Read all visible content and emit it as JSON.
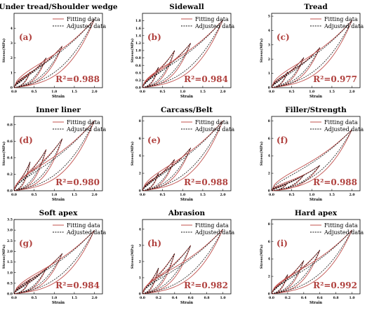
{
  "figure": {
    "legend_labels": [
      "Fitting data",
      "Adjusted data"
    ],
    "colors": {
      "fitting": "#c0504d",
      "adjusted": "#111111",
      "r2_text": "#b0413e"
    },
    "xlabel": "Strain",
    "ylabel": "Stress(MPa)"
  },
  "chart_data": [
    {
      "type": "line",
      "panel_label": "(a)",
      "title": "Under tread/Shoulder wedge",
      "r2_text": "R²=0.988",
      "xlabel": "Strain",
      "ylabel": "Stress(MPa)",
      "xlim": [
        0,
        2.2
      ],
      "ylim": [
        0,
        5
      ],
      "xticks": [
        "0.0",
        "0.5",
        "1.0",
        "1.5",
        "2.0"
      ],
      "xtick_values": [
        0,
        0.5,
        1,
        1.5,
        2
      ],
      "yticks": [
        "0",
        "1",
        "2",
        "3",
        "4"
      ],
      "ytick_values": [
        0,
        1,
        2,
        3,
        4
      ],
      "legend": "top-left",
      "grid": false,
      "cycles": [
        {
          "xmax": 0.4,
          "ymax": 1.05
        },
        {
          "xmax": 0.8,
          "ymax": 2.0
        },
        {
          "xmax": 1.2,
          "ymax": 2.8
        },
        {
          "xmax": 2.0,
          "ymax": 4.6
        }
      ]
    },
    {
      "type": "line",
      "panel_label": "(b)",
      "title": "Sidewall",
      "r2_text": "R²=0.984",
      "xlabel": "Strain",
      "ylabel": "Stress(MPa)",
      "xlim": [
        0,
        2.2
      ],
      "ylim": [
        0,
        2.0
      ],
      "xticks": [
        "0.0",
        "0.5",
        "1.0",
        "1.5",
        "2.0"
      ],
      "xtick_values": [
        0,
        0.5,
        1,
        1.5,
        2
      ],
      "yticks": [
        "0.0",
        "0.2",
        "0.4",
        "0.6",
        "0.8",
        "1.0",
        "1.2",
        "1.4",
        "1.6",
        "1.8"
      ],
      "ytick_values": [
        0,
        0.2,
        0.4,
        0.6,
        0.8,
        1.0,
        1.2,
        1.4,
        1.6,
        1.8
      ],
      "legend": "top-left",
      "grid": false,
      "cycles": [
        {
          "xmax": 0.4,
          "ymax": 0.55
        },
        {
          "xmax": 0.8,
          "ymax": 1.0
        },
        {
          "xmax": 1.2,
          "ymax": 1.2
        },
        {
          "xmax": 2.0,
          "ymax": 1.82
        }
      ]
    },
    {
      "type": "line",
      "panel_label": "(c)",
      "title": "Tread",
      "r2_text": "R²=0.977",
      "xlabel": "Strain",
      "ylabel": "Stress(MPa)",
      "xlim": [
        0,
        2.2
      ],
      "ylim": [
        0,
        5.2
      ],
      "xticks": [
        "0.0",
        "0.5",
        "1.0",
        "1.5",
        "2.0"
      ],
      "xtick_values": [
        0,
        0.5,
        1,
        1.5,
        2
      ],
      "yticks": [
        "0",
        "1",
        "2",
        "3",
        "4",
        "5"
      ],
      "ytick_values": [
        0,
        1,
        2,
        3,
        4,
        5
      ],
      "legend": "top-left",
      "grid": false,
      "cycles": [
        {
          "xmax": 0.4,
          "ymax": 1.1
        },
        {
          "xmax": 0.8,
          "ymax": 2.1
        },
        {
          "xmax": 1.2,
          "ymax": 2.8
        },
        {
          "xmax": 2.0,
          "ymax": 4.7
        }
      ]
    },
    {
      "type": "line",
      "panel_label": "(d)",
      "title": "Inner liner",
      "r2_text": "R²=0.980",
      "xlabel": "Strain",
      "ylabel": "Stress(MPa)",
      "xlim": [
        0,
        2.2
      ],
      "ylim": [
        0,
        0.9
      ],
      "xticks": [
        "0.0",
        "0.5",
        "1.0",
        "1.5",
        "2.0"
      ],
      "xtick_values": [
        0,
        0.5,
        1,
        1.5,
        2
      ],
      "yticks": [
        "0.0",
        "0.2",
        "0.4",
        "0.6",
        "0.8"
      ],
      "ytick_values": [
        0,
        0.2,
        0.4,
        0.6,
        0.8
      ],
      "legend": "top-left",
      "grid": false,
      "cycles": [
        {
          "xmax": 0.4,
          "ymax": 0.35
        },
        {
          "xmax": 0.8,
          "ymax": 0.5
        },
        {
          "xmax": 1.2,
          "ymax": 0.63
        },
        {
          "xmax": 2.0,
          "ymax": 0.85
        }
      ]
    },
    {
      "type": "line",
      "panel_label": "(e)",
      "title": "Carcass/Belt",
      "r2_text": "R²=0.988",
      "xlabel": "Strain",
      "ylabel": "Stress(MPa)",
      "xlim": [
        0,
        2.2
      ],
      "ylim": [
        0,
        8.5
      ],
      "xticks": [
        "0.0",
        "0.5",
        "1.0",
        "1.5",
        "2.0"
      ],
      "xtick_values": [
        0,
        0.5,
        1,
        1.5,
        2
      ],
      "yticks": [
        "0",
        "2",
        "4",
        "6",
        "8"
      ],
      "ytick_values": [
        0,
        2,
        4,
        6,
        8
      ],
      "legend": "top-left",
      "grid": false,
      "cycles": [
        {
          "xmax": 0.4,
          "ymax": 2.0
        },
        {
          "xmax": 0.8,
          "ymax": 3.6
        },
        {
          "xmax": 1.2,
          "ymax": 4.9
        },
        {
          "xmax": 2.0,
          "ymax": 8.0
        }
      ]
    },
    {
      "type": "line",
      "panel_label": "(f)",
      "title": "Filler/Strength",
      "r2_text": "R²=0.988",
      "xlabel": "Strain",
      "ylabel": "Stress(MPa)",
      "xlim": [
        0,
        2.2
      ],
      "ylim": [
        0,
        8.5
      ],
      "xticks": [
        "0.0",
        "0.5",
        "1.0",
        "1.5",
        "2.0"
      ],
      "xtick_values": [
        0,
        0.5,
        1,
        1.5,
        2
      ],
      "yticks": [
        "0",
        "2",
        "4",
        "6",
        "8"
      ],
      "ytick_values": [
        0,
        2,
        4,
        6,
        8
      ],
      "legend": "top-left",
      "grid": false,
      "cycles": [
        {
          "xmax": 0.4,
          "ymax": 0.9
        },
        {
          "xmax": 0.8,
          "ymax": 1.8
        },
        {
          "xmax": 1.2,
          "ymax": 2.9
        },
        {
          "xmax": 2.0,
          "ymax": 7.0
        }
      ]
    },
    {
      "type": "line",
      "panel_label": "(g)",
      "title": "Soft apex",
      "r2_text": "R²=0.984",
      "xlabel": "Strain",
      "ylabel": "Stress(MPa)",
      "xlim": [
        0,
        2.2
      ],
      "ylim": [
        0,
        3.5
      ],
      "xticks": [
        "0.0",
        "0.5",
        "1.0",
        "1.5",
        "2.0"
      ],
      "xtick_values": [
        0,
        0.5,
        1,
        1.5,
        2
      ],
      "yticks": [
        "0.0",
        "0.5",
        "1.0",
        "1.5",
        "2.0",
        "2.5",
        "3.0",
        "3.5"
      ],
      "ytick_values": [
        0,
        0.5,
        1,
        1.5,
        2,
        2.5,
        3,
        3.5
      ],
      "legend": "top-left",
      "grid": false,
      "cycles": [
        {
          "xmax": 0.4,
          "ymax": 0.7
        },
        {
          "xmax": 0.8,
          "ymax": 1.2
        },
        {
          "xmax": 1.2,
          "ymax": 1.9
        },
        {
          "xmax": 2.0,
          "ymax": 3.0
        }
      ]
    },
    {
      "type": "line",
      "panel_label": "(h)",
      "title": "Abrasion",
      "r2_text": "R²=0.982",
      "xlabel": "Strain",
      "ylabel": "Stress(MPa)",
      "xlim": [
        0,
        1.1
      ],
      "ylim": [
        0,
        4.6
      ],
      "xticks": [
        "0.0",
        "0.2",
        "0.4",
        "0.6",
        "0.8",
        "1.0"
      ],
      "xtick_values": [
        0,
        0.2,
        0.4,
        0.6,
        0.8,
        1.0
      ],
      "yticks": [
        "0",
        "1",
        "2",
        "3",
        "4"
      ],
      "ytick_values": [
        0,
        1,
        2,
        3,
        4
      ],
      "legend": "top-left",
      "grid": false,
      "cycles": [
        {
          "xmax": 0.2,
          "ymax": 1.6
        },
        {
          "xmax": 0.4,
          "ymax": 2.5
        },
        {
          "xmax": 0.6,
          "ymax": 3.0
        },
        {
          "xmax": 1.0,
          "ymax": 4.0
        }
      ]
    },
    {
      "type": "line",
      "panel_label": "(i)",
      "title": "Hard apex",
      "r2_text": "R²=0.992",
      "xlabel": "Strain",
      "ylabel": "Stress(MPa)",
      "xlim": [
        0,
        1.1
      ],
      "ylim": [
        0,
        8.5
      ],
      "xticks": [
        "0.0",
        "0.2",
        "0.4",
        "0.6",
        "0.8",
        "1.0"
      ],
      "xtick_values": [
        0,
        0.2,
        0.4,
        0.6,
        0.8,
        1.0
      ],
      "yticks": [
        "0",
        "2",
        "4",
        "6",
        "8"
      ],
      "ytick_values": [
        0,
        2,
        4,
        6,
        8
      ],
      "legend": "top-left",
      "grid": false,
      "cycles": [
        {
          "xmax": 0.2,
          "ymax": 2.2
        },
        {
          "xmax": 0.4,
          "ymax": 3.8
        },
        {
          "xmax": 0.6,
          "ymax": 5.0
        },
        {
          "xmax": 1.0,
          "ymax": 7.3
        }
      ]
    }
  ]
}
